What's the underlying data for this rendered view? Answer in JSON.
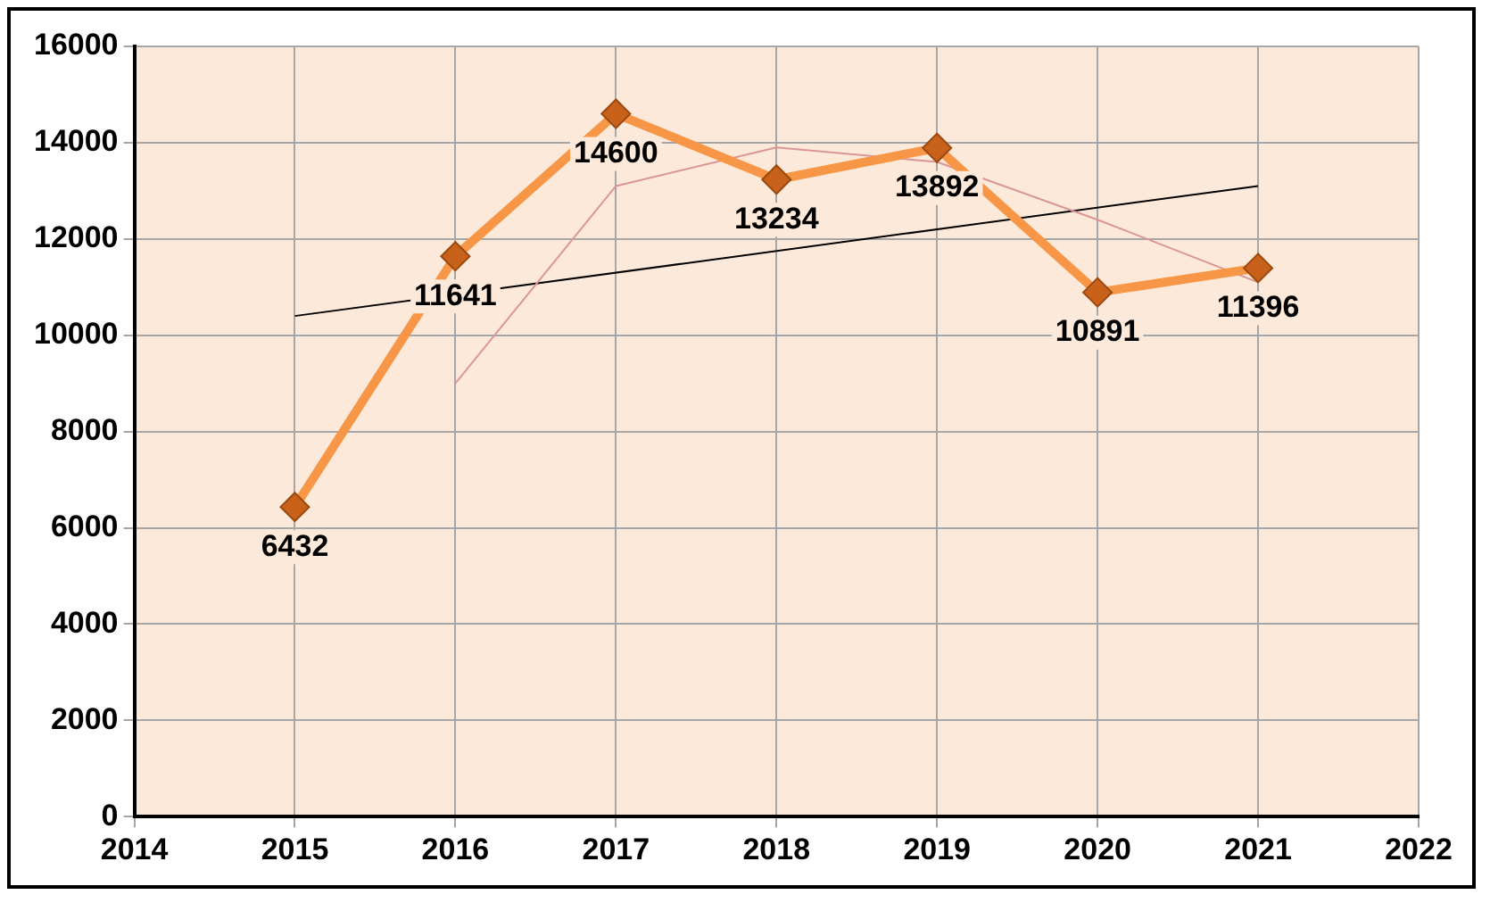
{
  "chart_data": {
    "type": "line",
    "x": [
      2015,
      2016,
      2017,
      2018,
      2019,
      2020,
      2021
    ],
    "series": [
      {
        "name": null,
        "color": "#f79646",
        "values": [
          6432,
          11641,
          14600,
          13234,
          13892,
          10891,
          11396
        ],
        "value_labels": [
          "6432",
          "11641",
          "14600",
          "13234",
          "13892",
          "10891",
          "11396"
        ],
        "marker": "diamond"
      },
      {
        "type": "line",
        "color": "#d99694",
        "x": [
          2016,
          2017,
          2018,
          2019,
          2020,
          2021
        ],
        "values": [
          9000,
          13100,
          13900,
          13600,
          12400,
          11100
        ],
        "marker": "none"
      },
      {
        "type": "line",
        "color": "#000000",
        "x": [
          2015,
          2021
        ],
        "values": [
          10400,
          13100
        ],
        "marker": "none"
      }
    ],
    "xlim": [
      2014,
      2022
    ],
    "xticks": [
      2014,
      2015,
      2016,
      2017,
      2018,
      2019,
      2020,
      2021,
      2022
    ],
    "ylim": [
      0,
      16000
    ],
    "yticks": [
      0,
      2000,
      4000,
      6000,
      8000,
      10000,
      12000,
      14000,
      16000
    ],
    "grid": true,
    "legend": false
  }
}
